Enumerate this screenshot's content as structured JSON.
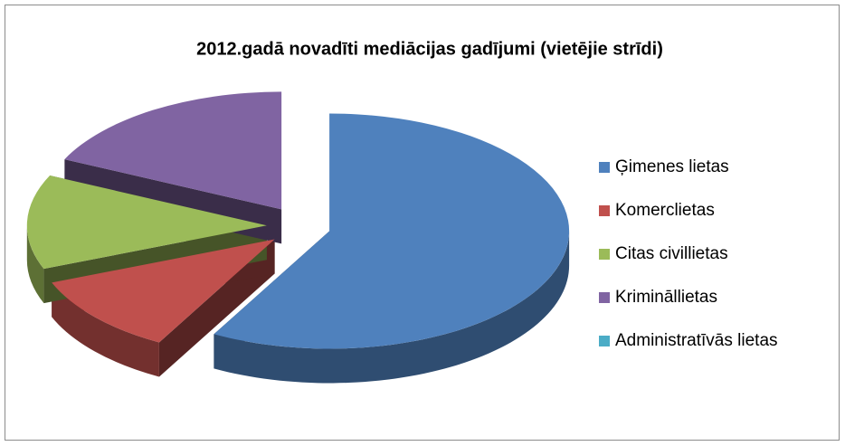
{
  "chart_data": {
    "type": "pie3d",
    "title": "2012.gadā novadīti mediācijas gadījumi (vietējie strīdi)",
    "categories": [
      "Ģimenes lietas",
      "Komerclietas",
      "Citas civillietas",
      "Krimināllietas",
      "Administratīvās lietas"
    ],
    "values": [
      58,
      11,
      13,
      18,
      0
    ],
    "colors": [
      "#4f81bd",
      "#c0504d",
      "#9bbb59",
      "#8064a2",
      "#4bacc6"
    ],
    "legend": "right"
  }
}
